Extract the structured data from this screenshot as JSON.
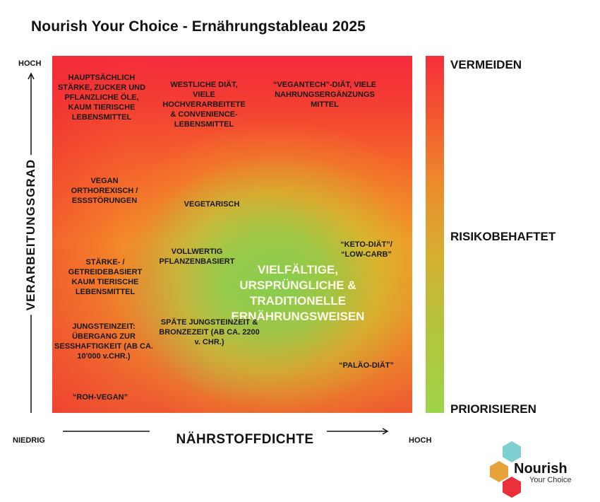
{
  "title": "Nourish Your Choice - Ernährungstableau 2025",
  "y_axis": {
    "label": "VERARBEITUNGSGRAD",
    "high": "HOCH"
  },
  "x_axis": {
    "label": "NÄHRSTOFFDICHTE",
    "low": "NIEDRIG",
    "high": "HOCH"
  },
  "scale": {
    "top": "VERMEIDEN",
    "middle": "RISIKOBEHAFTET",
    "bottom": "PRIORISIEREN"
  },
  "diets": {
    "d1": "HAUPTSÄCHLICH STÄRKE, ZUCKER UND PFLANZLICHE ÖLE, KAUM TIERISCHE LEBENSMITTEL",
    "d2": "WESTLICHE DIÄT, VIELE HOCHVERARBEITETE & CONVENIENCE-LEBENSMITTEL",
    "d3": "“VEGANTECH”-DIÄT, VIELE NAHRUNGSERGÄNZUNGS MITTEL",
    "d4": "VEGAN ORTHOREXISCH / ESSSTÖRUNGEN",
    "d5": "VEGETARISCH",
    "d6": "“KETO-DIÄT”/ “LOW-CARB”",
    "d7": "STÄRKE- / GETREIDEBASIERT KAUM TIERISCHE LEBENSMITTEL",
    "d8": "VOLLWERTIG PFLANZENBASIERT",
    "d9": "JUNGSTEINZEIT: ÜBERGANG ZUR SESSHAFTIGKEIT (AB CA. 10'000 v.CHR.)",
    "d10": "SPÄTE JUNGSTEINZEIT & BRONZEZEIT (AB CA. 2200 v. CHR.)",
    "d11": "“PALÄO-DIÄT”",
    "d12": "“ROH-VEGAN”",
    "center": "VIELFÄLTIGE, URSPRÜNGLICHE & TRADITIONELLE ERNÄHRUNGSWEISEN"
  },
  "logo": {
    "name": "Nourish",
    "tagline": "Your Choice"
  },
  "colors": {
    "avoid": "#f52f3a",
    "risk": "#d7ad30",
    "prioritize": "#9ed44a",
    "hex_teal": "#7ecfcf",
    "hex_orange": "#e8a23a",
    "hex_red": "#e9303a"
  }
}
